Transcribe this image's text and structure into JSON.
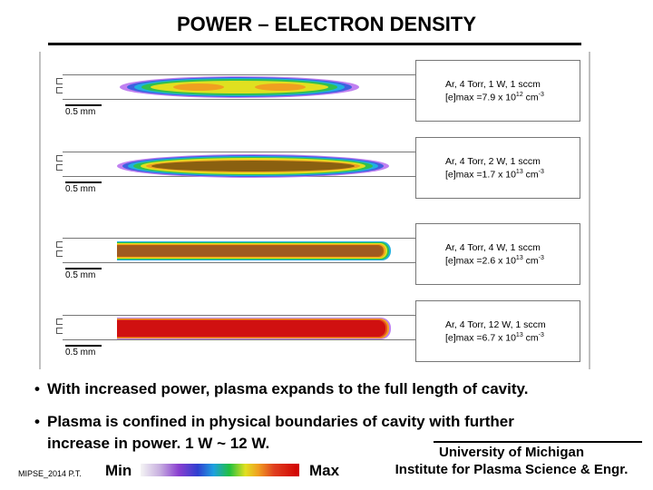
{
  "slide": {
    "title": "POWER – ELECTRON DENSITY"
  },
  "panels": [
    {
      "line1": "Ar, 4 Torr, 1 W, 1 sccm",
      "line2": "[e]max =7.9 x 10",
      "exp": "12",
      "unit": " cm",
      "unit_exp": "-3",
      "scale_label": "0.5 mm"
    },
    {
      "line1": "Ar, 4 Torr, 2 W, 1 sccm",
      "line2": "[e]max =1.7 x 10",
      "exp": "13",
      "unit": " cm",
      "unit_exp": "-3",
      "scale_label": "0.5 mm"
    },
    {
      "line1": "Ar, 4 Torr, 4 W, 1 sccm",
      "line2": "[e]max =2.6 x 10",
      "exp": "13",
      "unit": " cm",
      "unit_exp": "-3",
      "scale_label": "0.5 mm"
    },
    {
      "line1": "Ar, 4 Torr, 12 W, 1 sccm",
      "line2": "[e]max =6.7 x 10",
      "exp": "13",
      "unit": " cm",
      "unit_exp": "-3",
      "scale_label": "0.5 mm"
    }
  ],
  "bullets": [
    "With increased power, plasma expands to the full length of cavity.",
    "Plasma is confined in physical boundaries of cavity with further",
    "increase in power.   1 W ~ 12 W."
  ],
  "colorbar": {
    "min_label": "Min",
    "max_label": "Max"
  },
  "footer": {
    "id": "MIPSE_2014 P.T.",
    "org_line1": "University of Michigan",
    "org_line2": "Institute for Plasma Science & Engr."
  }
}
